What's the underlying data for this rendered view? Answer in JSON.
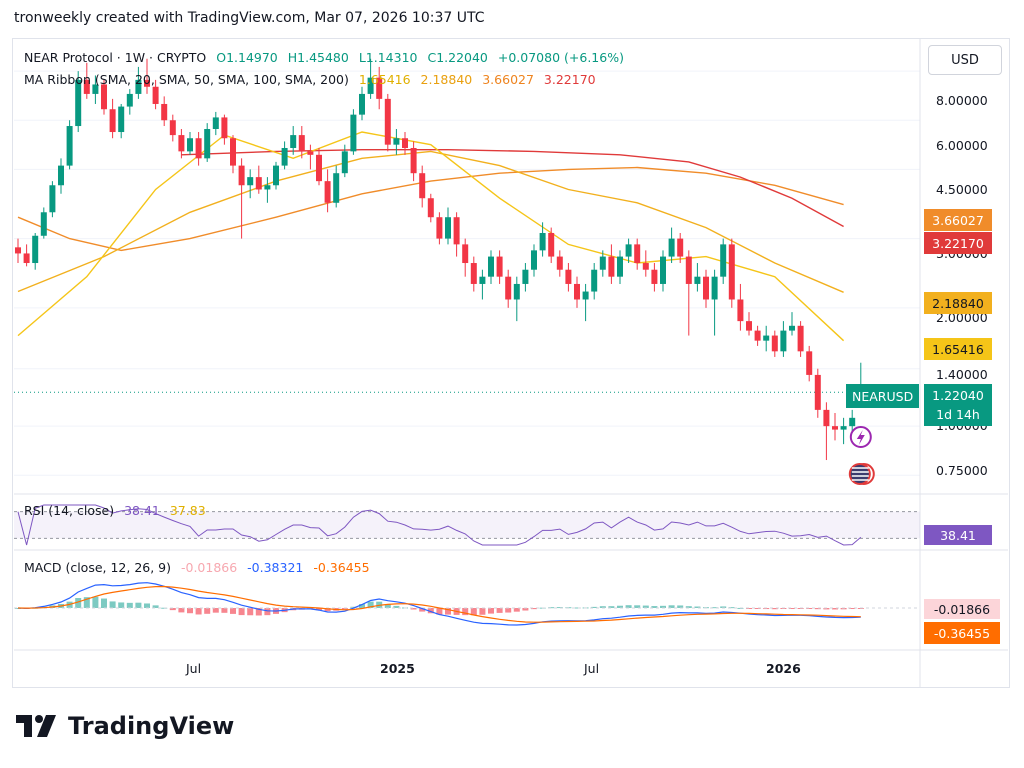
{
  "header": {
    "text": "tronweekly created with TradingView.com, Mar 07, 2026 10:37 UTC"
  },
  "legend": {
    "symbol": "NEAR Protocol · 1W · CRYPTO",
    "open": "O1.14970",
    "high": "H1.45480",
    "low": "L1.14310",
    "close": "C1.22040",
    "change": "+0.07080 (+6.16%)",
    "ma_title": "MA Ribbon (SMA, 20, SMA, 50, SMA, 100, SMA, 200)",
    "ma_values": [
      "1.65416",
      "2.18840",
      "3.66027",
      "3.22170"
    ]
  },
  "currency_button": "USD",
  "rsi": {
    "title": "RSI (14, close)",
    "v1": "38.41",
    "v2": "37.83",
    "tag": "38.41"
  },
  "macd": {
    "title": "MACD (close, 12, 26, 9)",
    "hist": "-0.01866",
    "macd": "-0.38321",
    "signal": "-0.36455",
    "tag_hist": "-0.01866",
    "tag_signal": "-0.36455"
  },
  "price_axis": [
    "8.00000",
    "6.00000",
    "4.50000",
    "3.00000",
    "2.00000",
    "1.40000",
    "1.00000",
    "0.75000"
  ],
  "price_tags": {
    "sma100": "3.66027",
    "sma200": "3.22170",
    "sma50": "2.18840",
    "sma20": "1.65416"
  },
  "last_price": {
    "ticker": "NEARUSD",
    "price": "1.22040",
    "countdown": "1d 14h"
  },
  "time_axis": [
    {
      "label": "Jul",
      "bold": false
    },
    {
      "label": "2025",
      "bold": true
    },
    {
      "label": "Jul",
      "bold": false
    },
    {
      "label": "2026",
      "bold": true
    }
  ],
  "brand": "TradingView",
  "colors": {
    "up": "#089981",
    "down": "#f23645",
    "sma20": "#f5c518",
    "sma50": "#f2b01e",
    "sma100": "#f08c2a",
    "sma200": "#e03a3a",
    "rsi": "#7e57c2",
    "macd": "#2962ff",
    "signal": "#ff6d00"
  },
  "chart_data": {
    "type": "candlestick",
    "title": "NEAR Protocol · 1W · CRYPTO",
    "y_scale": "log",
    "ylim": [
      0.68,
      9.6
    ],
    "y_ticks": [
      8.0,
      6.0,
      4.5,
      3.0,
      2.0,
      1.4,
      1.0,
      0.75
    ],
    "x_ticks": [
      "Jul",
      "2025",
      "Jul",
      "2026"
    ],
    "ohlc_weekly_approx": [
      [
        2.85,
        3.0,
        2.6,
        2.75
      ],
      [
        2.75,
        2.9,
        2.55,
        2.6
      ],
      [
        2.6,
        3.1,
        2.5,
        3.05
      ],
      [
        3.05,
        3.6,
        3.0,
        3.5
      ],
      [
        3.5,
        4.2,
        3.4,
        4.1
      ],
      [
        4.1,
        4.8,
        3.9,
        4.6
      ],
      [
        4.6,
        6.0,
        4.5,
        5.8
      ],
      [
        5.8,
        8.0,
        5.6,
        7.6
      ],
      [
        7.6,
        8.4,
        6.8,
        7.0
      ],
      [
        7.0,
        7.8,
        6.6,
        7.4
      ],
      [
        7.4,
        7.6,
        6.2,
        6.4
      ],
      [
        6.4,
        6.8,
        5.4,
        5.6
      ],
      [
        5.6,
        6.6,
        5.4,
        6.5
      ],
      [
        6.5,
        7.2,
        6.2,
        7.0
      ],
      [
        7.0,
        8.2,
        6.8,
        7.6
      ],
      [
        7.6,
        8.6,
        7.0,
        7.3
      ],
      [
        7.3,
        7.6,
        6.4,
        6.6
      ],
      [
        6.6,
        6.9,
        5.8,
        6.0
      ],
      [
        6.0,
        6.2,
        5.3,
        5.5
      ],
      [
        5.5,
        5.7,
        4.8,
        5.0
      ],
      [
        5.0,
        5.6,
        4.9,
        5.4
      ],
      [
        5.4,
        5.6,
        4.6,
        4.8
      ],
      [
        4.8,
        5.9,
        4.7,
        5.7
      ],
      [
        5.7,
        6.3,
        5.5,
        6.1
      ],
      [
        6.1,
        6.2,
        5.2,
        5.4
      ],
      [
        5.4,
        5.5,
        4.4,
        4.6
      ],
      [
        4.6,
        4.8,
        3.0,
        4.1
      ],
      [
        4.1,
        4.5,
        3.8,
        4.3
      ],
      [
        4.3,
        4.6,
        3.9,
        4.0
      ],
      [
        4.0,
        4.3,
        3.7,
        4.1
      ],
      [
        4.1,
        4.7,
        4.0,
        4.6
      ],
      [
        4.6,
        5.3,
        4.5,
        5.1
      ],
      [
        5.1,
        5.8,
        4.9,
        5.5
      ],
      [
        5.5,
        5.8,
        4.8,
        5.0
      ],
      [
        5.0,
        5.2,
        4.5,
        4.9
      ],
      [
        4.9,
        5.1,
        4.1,
        4.2
      ],
      [
        4.2,
        4.5,
        3.5,
        3.7
      ],
      [
        3.7,
        4.6,
        3.6,
        4.4
      ],
      [
        4.4,
        5.2,
        4.3,
        5.0
      ],
      [
        5.0,
        6.4,
        4.9,
        6.2
      ],
      [
        6.2,
        7.3,
        6.0,
        7.0
      ],
      [
        7.0,
        8.6,
        6.8,
        7.7
      ],
      [
        7.7,
        8.2,
        6.4,
        6.8
      ],
      [
        6.8,
        7.0,
        5.0,
        5.2
      ],
      [
        5.2,
        5.7,
        4.9,
        5.4
      ],
      [
        5.4,
        5.6,
        4.9,
        5.1
      ],
      [
        5.1,
        5.3,
        4.2,
        4.4
      ],
      [
        4.4,
        4.6,
        3.6,
        3.8
      ],
      [
        3.8,
        3.9,
        3.3,
        3.4
      ],
      [
        3.4,
        3.5,
        2.9,
        3.0
      ],
      [
        3.0,
        3.6,
        2.9,
        3.4
      ],
      [
        3.4,
        3.5,
        2.7,
        2.9
      ],
      [
        2.9,
        3.0,
        2.4,
        2.6
      ],
      [
        2.6,
        2.7,
        2.2,
        2.3
      ],
      [
        2.3,
        2.5,
        2.1,
        2.4
      ],
      [
        2.4,
        2.8,
        2.3,
        2.7
      ],
      [
        2.7,
        2.8,
        2.3,
        2.4
      ],
      [
        2.4,
        2.5,
        2.0,
        2.1
      ],
      [
        2.1,
        2.4,
        1.85,
        2.3
      ],
      [
        2.3,
        2.6,
        2.2,
        2.5
      ],
      [
        2.5,
        2.9,
        2.4,
        2.8
      ],
      [
        2.8,
        3.3,
        2.7,
        3.1
      ],
      [
        3.1,
        3.2,
        2.6,
        2.7
      ],
      [
        2.7,
        2.8,
        2.4,
        2.5
      ],
      [
        2.5,
        2.6,
        2.2,
        2.3
      ],
      [
        2.3,
        2.4,
        2.0,
        2.1
      ],
      [
        2.1,
        2.3,
        1.85,
        2.2
      ],
      [
        2.2,
        2.6,
        2.1,
        2.5
      ],
      [
        2.5,
        2.8,
        2.4,
        2.7
      ],
      [
        2.7,
        2.9,
        2.3,
        2.4
      ],
      [
        2.4,
        2.8,
        2.3,
        2.7
      ],
      [
        2.7,
        3.0,
        2.6,
        2.9
      ],
      [
        2.9,
        3.0,
        2.5,
        2.6
      ],
      [
        2.6,
        2.8,
        2.4,
        2.5
      ],
      [
        2.5,
        2.6,
        2.2,
        2.3
      ],
      [
        2.3,
        2.8,
        2.2,
        2.7
      ],
      [
        2.7,
        3.2,
        2.6,
        3.0
      ],
      [
        3.0,
        3.1,
        2.6,
        2.7
      ],
      [
        2.7,
        2.8,
        1.7,
        2.3
      ],
      [
        2.3,
        2.6,
        2.2,
        2.4
      ],
      [
        2.4,
        2.5,
        2.0,
        2.1
      ],
      [
        2.1,
        2.5,
        1.7,
        2.4
      ],
      [
        2.4,
        3.0,
        2.3,
        2.9
      ],
      [
        2.9,
        3.0,
        2.0,
        2.1
      ],
      [
        2.1,
        2.3,
        1.75,
        1.85
      ],
      [
        1.85,
        1.95,
        1.7,
        1.75
      ],
      [
        1.75,
        1.8,
        1.6,
        1.65
      ],
      [
        1.65,
        1.8,
        1.55,
        1.7
      ],
      [
        1.7,
        1.75,
        1.5,
        1.55
      ],
      [
        1.55,
        1.85,
        1.5,
        1.75
      ],
      [
        1.75,
        1.95,
        1.7,
        1.8
      ],
      [
        1.8,
        1.85,
        1.5,
        1.55
      ],
      [
        1.55,
        1.6,
        1.3,
        1.35
      ],
      [
        1.35,
        1.4,
        1.05,
        1.1
      ],
      [
        1.1,
        1.15,
        0.82,
        1.0
      ],
      [
        1.0,
        1.08,
        0.92,
        0.98
      ],
      [
        0.98,
        1.05,
        0.9,
        1.0
      ],
      [
        1.0,
        1.1,
        0.95,
        1.05
      ],
      [
        1.15,
        1.45,
        1.14,
        1.22
      ]
    ],
    "series": [
      {
        "name": "SMA 20",
        "last": 1.65416
      },
      {
        "name": "SMA 50",
        "last": 2.1884
      },
      {
        "name": "SMA 100",
        "last": 3.66027
      },
      {
        "name": "SMA 200",
        "last": 3.2217
      }
    ],
    "sma_approx": {
      "sma20": [
        [
          0,
          1.7
        ],
        [
          8,
          2.4
        ],
        [
          16,
          4.0
        ],
        [
          24,
          5.5
        ],
        [
          32,
          4.8
        ],
        [
          40,
          5.6
        ],
        [
          48,
          5.2
        ],
        [
          56,
          3.8
        ],
        [
          64,
          2.9
        ],
        [
          72,
          2.6
        ],
        [
          80,
          2.7
        ],
        [
          88,
          2.4
        ],
        [
          96,
          1.65
        ]
      ],
      "sma50": [
        [
          0,
          2.2
        ],
        [
          10,
          2.7
        ],
        [
          20,
          3.5
        ],
        [
          30,
          4.2
        ],
        [
          40,
          4.8
        ],
        [
          48,
          5.0
        ],
        [
          56,
          4.6
        ],
        [
          64,
          4.0
        ],
        [
          72,
          3.7
        ],
        [
          80,
          3.2
        ],
        [
          88,
          2.6
        ],
        [
          96,
          2.19
        ]
      ],
      "sma100": [
        [
          0,
          3.4
        ],
        [
          6,
          3.0
        ],
        [
          12,
          2.8
        ],
        [
          20,
          3.0
        ],
        [
          30,
          3.4
        ],
        [
          40,
          3.9
        ],
        [
          48,
          4.2
        ],
        [
          56,
          4.4
        ],
        [
          64,
          4.5
        ],
        [
          72,
          4.55
        ],
        [
          80,
          4.4
        ],
        [
          88,
          4.1
        ],
        [
          96,
          3.66
        ]
      ],
      "sma200": [
        [
          19,
          4.9
        ],
        [
          30,
          5.0
        ],
        [
          40,
          5.05
        ],
        [
          50,
          5.05
        ],
        [
          60,
          5.0
        ],
        [
          70,
          4.9
        ],
        [
          78,
          4.7
        ],
        [
          84,
          4.3
        ],
        [
          90,
          3.8
        ],
        [
          96,
          3.22
        ]
      ]
    },
    "rsi_last": 38.41,
    "rsi_ma_last": 37.83,
    "macd_last": -0.38321,
    "signal_last": -0.36455,
    "histogram_last": -0.01866
  }
}
